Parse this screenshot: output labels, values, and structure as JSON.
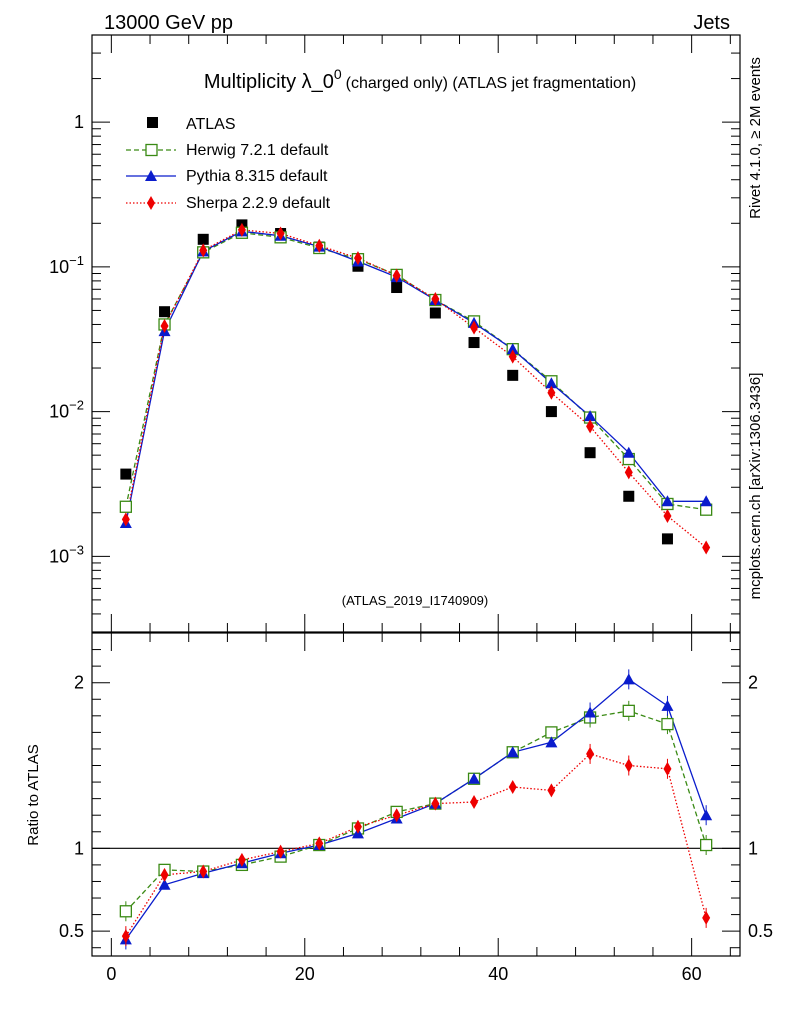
{
  "header": {
    "left": "13000 GeV pp",
    "right": "Jets"
  },
  "side": {
    "rivet": "Rivet 4.1.0, ≥ 2M events",
    "mcplots": "mcplots.cern.ch [arXiv:1306.3436]"
  },
  "colors": {
    "atlas": "#000000",
    "herwig": "#3a8a14",
    "pythia": "#0a1ccc",
    "sherpa": "#ee0000",
    "tag": "#999999"
  },
  "chart_data": [
    {
      "type": "scatter",
      "title": "Multiplicity λ_0^0",
      "title_base": "Multiplicity λ_0",
      "title_sup": "0",
      "title_suffix": "(charged only) (ATLAS jet fragmentation)",
      "analysis_tag": "(ATLAS_2019_I1740909)",
      "yscale": "log",
      "ylim": [
        0.0003,
        4
      ],
      "xlim": [
        -2,
        65
      ],
      "yticks": [
        {
          "value": 1,
          "label": "1"
        },
        {
          "value": 0.1,
          "base": "10",
          "exp": "−1"
        },
        {
          "value": 0.01,
          "base": "10",
          "exp": "−2"
        },
        {
          "value": 0.001,
          "base": "10",
          "exp": "−3"
        }
      ],
      "legend_position": "top-left",
      "x": [
        1.5,
        5.5,
        9.5,
        13.5,
        17.5,
        21.5,
        25.5,
        29.5,
        33.5,
        37.5,
        41.5,
        45.5,
        49.5,
        53.5,
        57.5,
        61.5
      ],
      "series": [
        {
          "name": "ATLAS",
          "key": "atlas",
          "values": [
            0.0037,
            0.049,
            0.155,
            0.195,
            0.17,
            0.137,
            0.101,
            0.072,
            0.048,
            0.03,
            0.0178,
            0.01,
            0.0052,
            0.0026,
            0.00132,
            0.0021
          ]
        },
        {
          "name": "Herwig 7.2.1 default",
          "key": "herwig",
          "values": [
            0.0022,
            0.04,
            0.126,
            0.172,
            0.16,
            0.135,
            0.113,
            0.088,
            0.059,
            0.042,
            0.027,
            0.0162,
            0.0091,
            0.0047,
            0.0023,
            0.0021
          ]
        },
        {
          "name": "Pythia 8.315 default",
          "key": "pythia",
          "values": [
            0.0017,
            0.036,
            0.128,
            0.176,
            0.164,
            0.138,
            0.109,
            0.085,
            0.059,
            0.041,
            0.027,
            0.0157,
            0.0093,
            0.0052,
            0.0024,
            0.0024
          ]
        },
        {
          "name": "Sherpa 2.2.9 default",
          "key": "sherpa",
          "values": [
            0.0018,
            0.039,
            0.13,
            0.18,
            0.17,
            0.14,
            0.115,
            0.087,
            0.06,
            0.038,
            0.024,
            0.0135,
            0.0079,
            0.0038,
            0.0019,
            0.00115
          ]
        }
      ]
    },
    {
      "type": "line",
      "ylabel": "Ratio to ATLAS",
      "xlabel": "",
      "ylim": [
        0.35,
        2.3
      ],
      "xlim": [
        -2,
        65
      ],
      "reference_line": 1,
      "yticks": [
        0.5,
        1,
        2
      ],
      "xticks": [
        0,
        20,
        40,
        60
      ],
      "x": [
        1.5,
        5.5,
        9.5,
        13.5,
        17.5,
        21.5,
        25.5,
        29.5,
        33.5,
        37.5,
        41.5,
        45.5,
        49.5,
        53.5,
        57.5,
        61.5
      ],
      "series": [
        {
          "name": "Herwig 7.2.1 default",
          "key": "herwig",
          "values": [
            0.62,
            0.87,
            0.86,
            0.9,
            0.95,
            1.02,
            1.12,
            1.22,
            1.27,
            1.42,
            1.58,
            1.7,
            1.79,
            1.83,
            1.75,
            1.02
          ]
        },
        {
          "name": "Pythia 8.315 default",
          "key": "pythia",
          "values": [
            0.45,
            0.78,
            0.85,
            0.91,
            0.97,
            1.02,
            1.09,
            1.18,
            1.27,
            1.42,
            1.58,
            1.64,
            1.82,
            2.02,
            1.86,
            1.2
          ]
        },
        {
          "name": "Sherpa 2.2.9 default",
          "key": "sherpa",
          "values": [
            0.47,
            0.84,
            0.86,
            0.93,
            0.98,
            1.03,
            1.13,
            1.2,
            1.27,
            1.28,
            1.37,
            1.35,
            1.57,
            1.5,
            1.48,
            0.58
          ]
        }
      ]
    }
  ]
}
